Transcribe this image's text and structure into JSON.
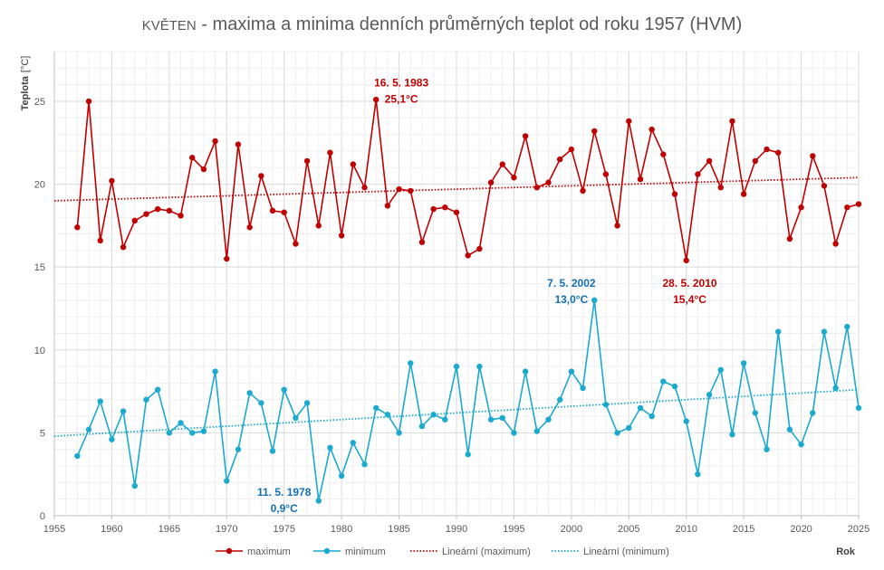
{
  "chart_data": {
    "type": "line",
    "title_prefix": "KVĚTEN",
    "title_rest": " - maxima a minima denních průměrných teplot od roku 1957 (HVM)",
    "ylabel": "Teplota",
    "yunit": "[°C]",
    "xlabel": "Rok",
    "xlim": [
      1955,
      2025
    ],
    "ylim": [
      0,
      28
    ],
    "xticks": [
      1955,
      1960,
      1965,
      1970,
      1975,
      1980,
      1985,
      1990,
      1995,
      2000,
      2005,
      2010,
      2015,
      2020,
      2025
    ],
    "yticks": [
      0,
      5,
      10,
      15,
      20,
      25
    ],
    "x": [
      1957,
      1958,
      1959,
      1960,
      1961,
      1962,
      1963,
      1964,
      1965,
      1966,
      1967,
      1968,
      1969,
      1970,
      1971,
      1972,
      1973,
      1974,
      1975,
      1976,
      1977,
      1978,
      1979,
      1980,
      1981,
      1982,
      1983,
      1984,
      1985,
      1986,
      1987,
      1988,
      1989,
      1990,
      1991,
      1992,
      1993,
      1994,
      1995,
      1996,
      1997,
      1998,
      1999,
      2000,
      2001,
      2002,
      2003,
      2004,
      2005,
      2006,
      2007,
      2008,
      2009,
      2010,
      2011,
      2012,
      2013,
      2014,
      2015,
      2016,
      2017,
      2018,
      2019,
      2020,
      2021,
      2022,
      2023,
      2024,
      2025
    ],
    "series": [
      {
        "name": "maximum",
        "color": "#c00000",
        "values": [
          17.4,
          25.0,
          16.6,
          20.2,
          16.2,
          17.8,
          18.2,
          18.5,
          18.4,
          18.1,
          21.6,
          20.9,
          22.6,
          15.5,
          22.4,
          17.4,
          20.5,
          18.4,
          18.3,
          16.4,
          21.4,
          17.5,
          21.9,
          16.9,
          21.2,
          19.8,
          25.1,
          18.7,
          19.7,
          19.6,
          16.5,
          18.5,
          18.6,
          18.3,
          15.7,
          16.1,
          20.1,
          21.2,
          20.4,
          22.9,
          19.8,
          20.1,
          21.5,
          22.1,
          19.6,
          23.2,
          20.6,
          17.5,
          23.8,
          20.3,
          23.3,
          21.8,
          19.4,
          15.4,
          20.6,
          21.4,
          19.8,
          23.8,
          19.4,
          21.4,
          22.1,
          21.9,
          16.7,
          18.6,
          21.7,
          19.9,
          16.4,
          18.6,
          18.8
        ]
      },
      {
        "name": "minimum",
        "color": "#1aa9cf",
        "values": [
          3.6,
          5.2,
          6.9,
          4.6,
          6.3,
          1.8,
          7.0,
          7.6,
          5.0,
          5.6,
          5.0,
          5.1,
          8.7,
          2.1,
          4.0,
          7.4,
          6.8,
          3.9,
          7.6,
          5.9,
          6.8,
          0.9,
          4.1,
          2.4,
          4.4,
          3.1,
          6.5,
          6.1,
          5.0,
          9.2,
          5.4,
          6.1,
          5.8,
          9.0,
          3.7,
          9.0,
          5.8,
          5.9,
          5.0,
          8.7,
          5.1,
          5.8,
          7.0,
          8.7,
          7.7,
          13.0,
          6.7,
          5.0,
          5.3,
          6.5,
          6.0,
          8.1,
          7.8,
          5.7,
          2.5,
          7.3,
          8.8,
          4.9,
          9.2,
          6.2,
          4.0,
          11.1,
          5.2,
          4.3,
          6.2,
          11.1,
          7.7,
          11.4,
          6.5
        ]
      }
    ],
    "trends": [
      {
        "name": "Lineární (maximum)",
        "color": "#c00000",
        "from": [
          1955,
          19.0
        ],
        "to": [
          2025,
          20.4
        ]
      },
      {
        "name": "Lineární (minimum)",
        "color": "#1aa9cf",
        "from": [
          1955,
          4.8
        ],
        "to": [
          2025,
          7.6
        ]
      }
    ],
    "annotations": [
      {
        "date": "16. 5. 1983",
        "value": "25,1°C",
        "color": "#c00000",
        "x": 1985.2,
        "y": 25.9
      },
      {
        "date": "28. 5. 2010",
        "value": "15,4°C",
        "color": "#c00000",
        "x": 2010.3,
        "y": 13.8
      },
      {
        "date": "7. 5. 2002",
        "value": "13,0°C",
        "color": "#1270b8",
        "x": 2000.0,
        "y": 13.8
      },
      {
        "date": "11. 5. 1978",
        "value": "0,9°C",
        "color": "#1270b8",
        "x": 1975.0,
        "y": 1.2
      }
    ],
    "grid": true,
    "legend_position": "bottom"
  }
}
